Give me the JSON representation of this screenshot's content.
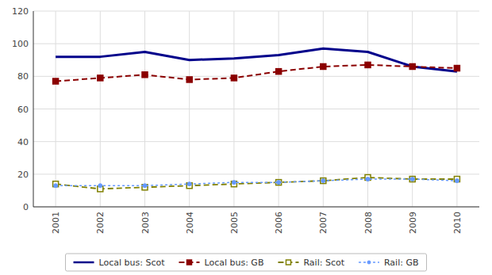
{
  "chart_data": {
    "type": "line",
    "x": [
      2001,
      2002,
      2003,
      2004,
      2005,
      2006,
      2007,
      2008,
      2009,
      2010
    ],
    "xlim": [
      2000.5,
      2010.5
    ],
    "xticks": [
      2001,
      2002,
      2003,
      2004,
      2005,
      2006,
      2007,
      2008,
      2009,
      2010
    ],
    "ylim": [
      0,
      120
    ],
    "yticks": [
      0,
      20,
      40,
      60,
      80,
      100,
      120
    ],
    "grid": true,
    "legend": "bottom",
    "series": [
      {
        "name": "Local bus: Scot",
        "color": "#00008B",
        "marker": "none",
        "line_style": "solid",
        "values": [
          92,
          92,
          95,
          90,
          91,
          93,
          97,
          95,
          86,
          83
        ]
      },
      {
        "name": "Local bus: GB",
        "color": "#8B0000",
        "marker": "square",
        "line_style": "dashed",
        "values": [
          77,
          79,
          81,
          78,
          79,
          83,
          86,
          87,
          86,
          85
        ]
      },
      {
        "name": "Rail: Scot",
        "color": "#808000",
        "marker": "open-square",
        "line_style": "dashed",
        "values": [
          14,
          11,
          12,
          13,
          14,
          15,
          16,
          18,
          17,
          17
        ]
      },
      {
        "name": "Rail: GB",
        "color": "#6699FF",
        "marker": "circle",
        "line_style": "dotted",
        "values": [
          13,
          13,
          13,
          14,
          15,
          15,
          16,
          17,
          17,
          16
        ]
      }
    ]
  }
}
